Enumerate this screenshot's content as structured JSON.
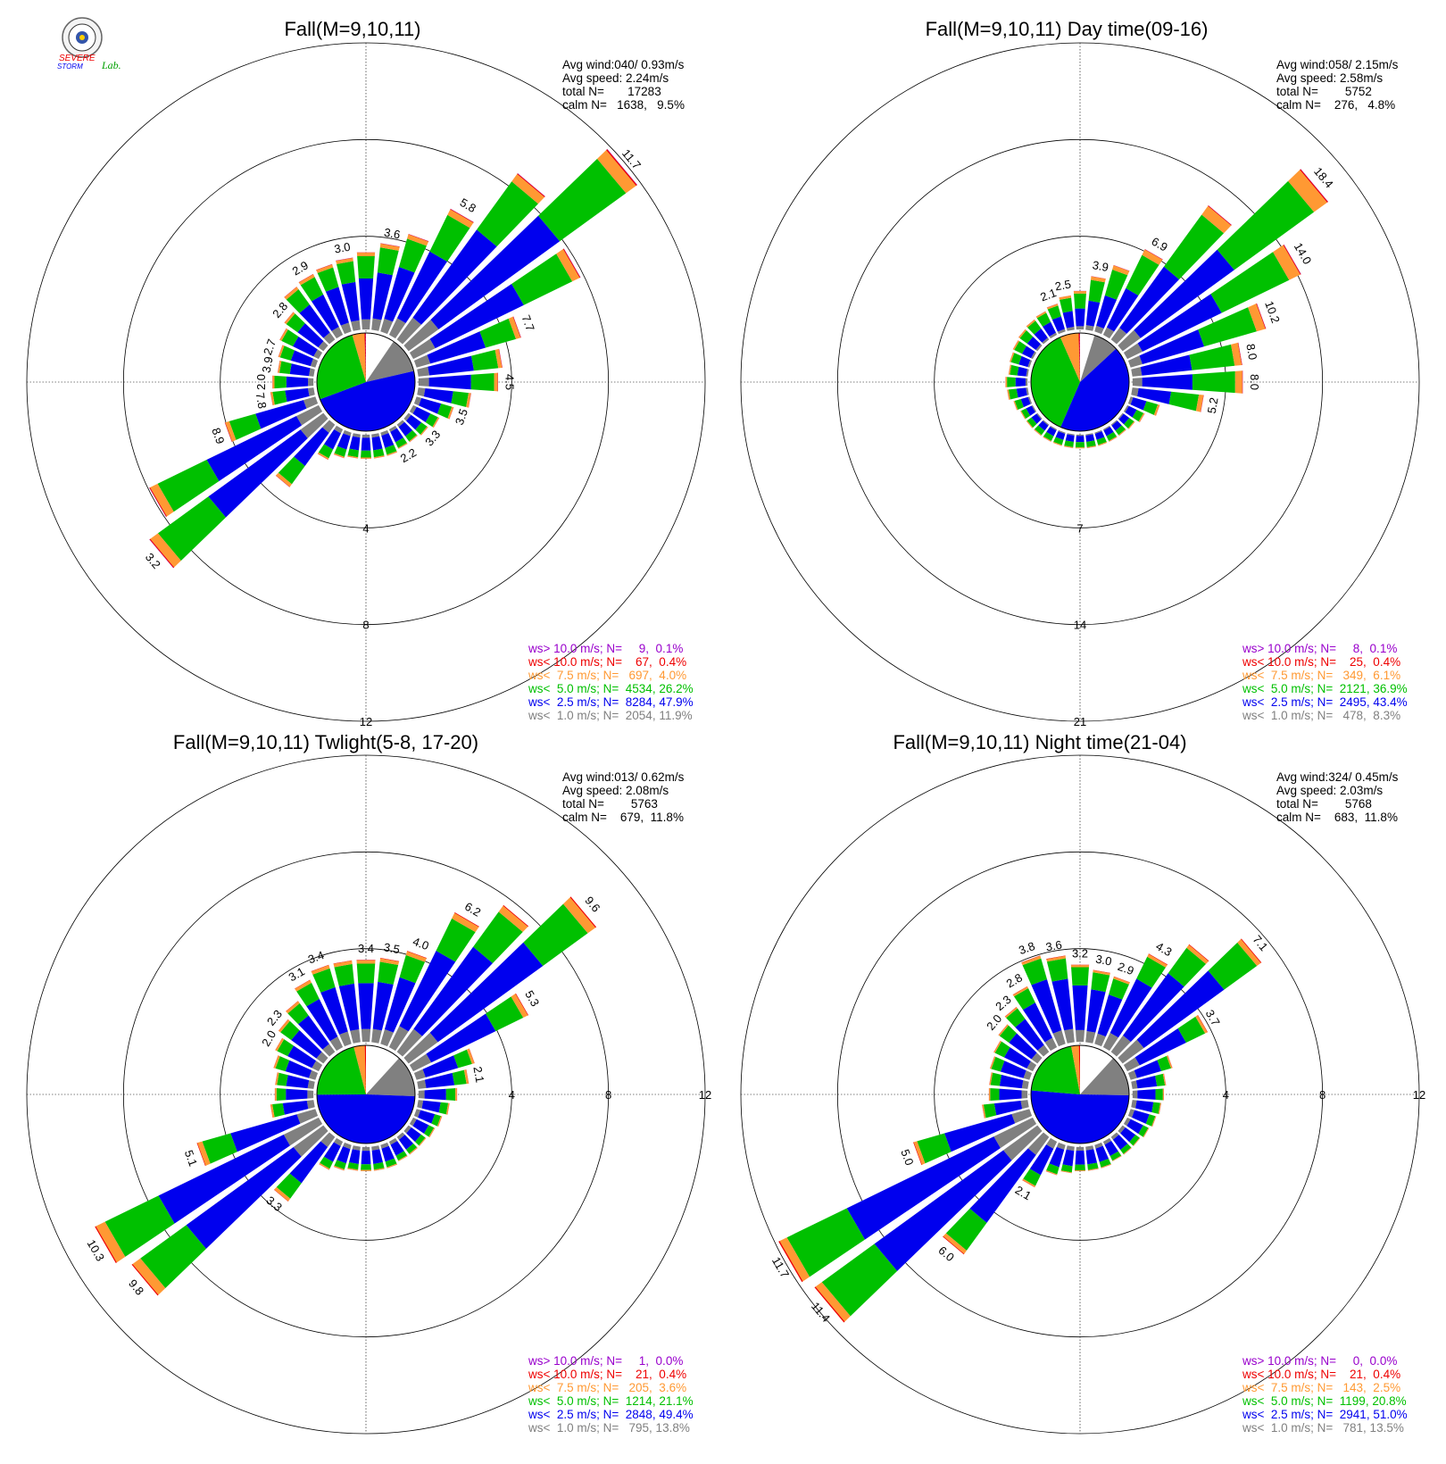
{
  "logo": {
    "text_top": "SEVERE",
    "text_mid": "STORM",
    "text_lab": "Lab."
  },
  "colors": {
    "calm": "#ffffff",
    "lt1": "#808080",
    "lt2_5": "#0000ee",
    "lt5": "#00c000",
    "lt7_5": "#ff9933",
    "lt10": "#ee0000",
    "gt10": "#9900cc"
  },
  "chart_data": [
    {
      "type": "windrose",
      "title": "Fall(M=9,10,11)",
      "stats": [
        "Avg wind:040/ 0.93m/s",
        "Avg speed: 2.24m/s",
        "total N=       17283",
        "calm N=   1638,   9.5%"
      ],
      "ring_labels": [
        "4",
        "8",
        "12"
      ],
      "ring_max": 12,
      "ring_axis": "south",
      "labels_shown": {
        "270": "2.0",
        "290": "2.7",
        "310": "2.8",
        "330": "2.9",
        "350": "3.0",
        "10": "3.6",
        "30": "5.8",
        "50": "11.7",
        "70": "7.7",
        "90": "4.5",
        "110": "3.5",
        "130": "3.3",
        "150": "2.2",
        "230": "3.2",
        "250": "8.9",
        "260": "7.8",
        "280": "3.9"
      },
      "sectors": [
        {
          "dir": 0,
          "total": 3.2
        },
        {
          "dir": 10,
          "total": 3.6
        },
        {
          "dir": 20,
          "total": 4.2
        },
        {
          "dir": 30,
          "total": 5.8
        },
        {
          "dir": 40,
          "total": 8.5
        },
        {
          "dir": 50,
          "total": 11.7
        },
        {
          "dir": 60,
          "total": 7.7
        },
        {
          "dir": 70,
          "total": 4.5
        },
        {
          "dir": 80,
          "total": 3.5
        },
        {
          "dir": 90,
          "total": 3.3
        },
        {
          "dir": 100,
          "total": 2.2
        },
        {
          "dir": 110,
          "total": 1.6
        },
        {
          "dir": 120,
          "total": 1.2
        },
        {
          "dir": 130,
          "total": 1.0
        },
        {
          "dir": 140,
          "total": 0.9
        },
        {
          "dir": 150,
          "total": 0.9
        },
        {
          "dir": 160,
          "total": 1.0
        },
        {
          "dir": 170,
          "total": 1.0
        },
        {
          "dir": 180,
          "total": 1.0
        },
        {
          "dir": 190,
          "total": 1.0
        },
        {
          "dir": 200,
          "total": 1.1
        },
        {
          "dir": 210,
          "total": 1.4
        },
        {
          "dir": 220,
          "total": 3.2
        },
        {
          "dir": 230,
          "total": 8.9
        },
        {
          "dir": 240,
          "total": 7.8
        },
        {
          "dir": 250,
          "total": 3.9
        },
        {
          "dir": 260,
          "total": 1.8
        },
        {
          "dir": 270,
          "total": 1.7
        },
        {
          "dir": 280,
          "total": 1.5
        },
        {
          "dir": 290,
          "total": 1.6
        },
        {
          "dir": 300,
          "total": 1.8
        },
        {
          "dir": 310,
          "total": 2.0
        },
        {
          "dir": 320,
          "total": 2.7
        },
        {
          "dir": 330,
          "total": 2.8
        },
        {
          "dir": 340,
          "total": 2.9
        },
        {
          "dir": 350,
          "total": 3.0
        }
      ],
      "speed_dist": [
        9.5,
        11.9,
        47.9,
        26.2,
        4.0,
        0.4,
        0.1
      ],
      "legend": [
        {
          "text": "ws> 10.0 m/s; N=     9,  0.1%",
          "key": "gt10"
        },
        {
          "text": "ws< 10.0 m/s; N=    67,  0.4%",
          "key": "lt10"
        },
        {
          "text": "ws<  7.5 m/s; N=   697,  4.0%",
          "key": "lt7_5"
        },
        {
          "text": "ws<  5.0 m/s; N=  4534, 26.2%",
          "key": "lt5"
        },
        {
          "text": "ws<  2.5 m/s; N=  8284, 47.9%",
          "key": "lt2_5"
        },
        {
          "text": "ws<  1.0 m/s; N=  2054, 11.9%",
          "key": "lt1"
        }
      ]
    },
    {
      "type": "windrose",
      "title": "Fall(M=9,10,11) Day time(09-16)",
      "stats": [
        "Avg wind:058/ 2.15m/s",
        "Avg speed: 2.58m/s",
        "total N=        5752",
        "calm N=    276,   4.8%"
      ],
      "ring_labels": [
        "7",
        "14",
        "21"
      ],
      "ring_max": 21,
      "ring_axis": "south",
      "labels_shown": {
        "340": "2.1",
        "350": "2.5",
        "10": "3.9",
        "30": "6.9",
        "50": "18.4",
        "60": "14.0",
        "70": "10.2",
        "80": "8.0",
        "90": "8.0",
        "100": "5.2"
      },
      "sectors": [
        {
          "dir": 0,
          "total": 2.8
        },
        {
          "dir": 10,
          "total": 3.9
        },
        {
          "dir": 20,
          "total": 5.0
        },
        {
          "dir": 30,
          "total": 6.9
        },
        {
          "dir": 40,
          "total": 12.0
        },
        {
          "dir": 50,
          "total": 18.4
        },
        {
          "dir": 60,
          "total": 14.0
        },
        {
          "dir": 70,
          "total": 10.2
        },
        {
          "dir": 80,
          "total": 8.0
        },
        {
          "dir": 90,
          "total": 8.0
        },
        {
          "dir": 100,
          "total": 5.2
        },
        {
          "dir": 110,
          "total": 2.2
        },
        {
          "dir": 120,
          "total": 1.4
        },
        {
          "dir": 130,
          "total": 1.1
        },
        {
          "dir": 140,
          "total": 1.0
        },
        {
          "dir": 150,
          "total": 1.0
        },
        {
          "dir": 160,
          "total": 1.0
        },
        {
          "dir": 170,
          "total": 1.0
        },
        {
          "dir": 180,
          "total": 1.0
        },
        {
          "dir": 190,
          "total": 1.0
        },
        {
          "dir": 200,
          "total": 1.0
        },
        {
          "dir": 210,
          "total": 1.0
        },
        {
          "dir": 220,
          "total": 1.0
        },
        {
          "dir": 230,
          "total": 1.0
        },
        {
          "dir": 240,
          "total": 1.0
        },
        {
          "dir": 250,
          "total": 1.2
        },
        {
          "dir": 260,
          "total": 1.5
        },
        {
          "dir": 270,
          "total": 1.6
        },
        {
          "dir": 280,
          "total": 1.4
        },
        {
          "dir": 290,
          "total": 1.5
        },
        {
          "dir": 300,
          "total": 1.6
        },
        {
          "dir": 310,
          "total": 1.7
        },
        {
          "dir": 320,
          "total": 1.8
        },
        {
          "dir": 330,
          "total": 1.9
        },
        {
          "dir": 340,
          "total": 2.1
        },
        {
          "dir": 350,
          "total": 2.5
        }
      ],
      "speed_dist": [
        4.8,
        8.3,
        43.4,
        36.9,
        6.1,
        0.4,
        0.1
      ],
      "legend": [
        {
          "text": "ws> 10.0 m/s; N=     8,  0.1%",
          "key": "gt10"
        },
        {
          "text": "ws< 10.0 m/s; N=    25,  0.4%",
          "key": "lt10"
        },
        {
          "text": "ws<  7.5 m/s; N=   349,  6.1%",
          "key": "lt7_5"
        },
        {
          "text": "ws<  5.0 m/s; N=  2121, 36.9%",
          "key": "lt5"
        },
        {
          "text": "ws<  2.5 m/s; N=  2495, 43.4%",
          "key": "lt2_5"
        },
        {
          "text": "ws<  1.0 m/s; N=   478,  8.3%",
          "key": "lt1"
        }
      ]
    },
    {
      "type": "windrose",
      "title": "Fall(M=9,10,11) Twlight(5-8, 17-20)",
      "stats": [
        "Avg wind:013/ 0.62m/s",
        "Avg speed: 2.08m/s",
        "total N=        5763",
        "calm N=    679,  11.8%"
      ],
      "ring_labels": [
        "4",
        "8",
        "12"
      ],
      "ring_max": 12,
      "ring_axis": "east",
      "labels_shown": {
        "300": "2.0",
        "310": "2.3",
        "330": "3.1",
        "340": "3.4",
        "0": "3.4",
        "10": "3.5",
        "20": "4.0",
        "30": "6.2",
        "50": "9.6",
        "60": "5.3",
        "80": "2.1",
        "250": "5.1",
        "240": "10.3",
        "230": "9.8",
        "220": "3.3"
      },
      "sectors": [
        {
          "dir": 0,
          "total": 3.4
        },
        {
          "dir": 10,
          "total": 3.5
        },
        {
          "dir": 20,
          "total": 4.0
        },
        {
          "dir": 30,
          "total": 6.2
        },
        {
          "dir": 40,
          "total": 7.5
        },
        {
          "dir": 50,
          "total": 9.6
        },
        {
          "dir": 60,
          "total": 5.3
        },
        {
          "dir": 70,
          "total": 2.5
        },
        {
          "dir": 80,
          "total": 2.1
        },
        {
          "dir": 90,
          "total": 1.6
        },
        {
          "dir": 100,
          "total": 1.3
        },
        {
          "dir": 110,
          "total": 1.1
        },
        {
          "dir": 120,
          "total": 1.0
        },
        {
          "dir": 130,
          "total": 0.9
        },
        {
          "dir": 140,
          "total": 0.9
        },
        {
          "dir": 150,
          "total": 0.9
        },
        {
          "dir": 160,
          "total": 1.0
        },
        {
          "dir": 170,
          "total": 1.0
        },
        {
          "dir": 180,
          "total": 1.0
        },
        {
          "dir": 190,
          "total": 1.0
        },
        {
          "dir": 200,
          "total": 1.1
        },
        {
          "dir": 210,
          "total": 1.3
        },
        {
          "dir": 220,
          "total": 3.3
        },
        {
          "dir": 230,
          "total": 9.8
        },
        {
          "dir": 240,
          "total": 10.3
        },
        {
          "dir": 250,
          "total": 5.1
        },
        {
          "dir": 260,
          "total": 1.8
        },
        {
          "dir": 270,
          "total": 1.6
        },
        {
          "dir": 280,
          "total": 1.6
        },
        {
          "dir": 290,
          "total": 1.8
        },
        {
          "dir": 300,
          "total": 2.0
        },
        {
          "dir": 310,
          "total": 2.3
        },
        {
          "dir": 320,
          "total": 2.6
        },
        {
          "dir": 330,
          "total": 3.1
        },
        {
          "dir": 340,
          "total": 3.4
        },
        {
          "dir": 350,
          "total": 3.4
        }
      ],
      "speed_dist": [
        11.8,
        13.8,
        49.4,
        21.1,
        3.6,
        0.4,
        0.0
      ],
      "legend": [
        {
          "text": "ws> 10.0 m/s; N=     1,  0.0%",
          "key": "gt10"
        },
        {
          "text": "ws< 10.0 m/s; N=    21,  0.4%",
          "key": "lt10"
        },
        {
          "text": "ws<  7.5 m/s; N=   205,  3.6%",
          "key": "lt7_5"
        },
        {
          "text": "ws<  5.0 m/s; N=  1214, 21.1%",
          "key": "lt5"
        },
        {
          "text": "ws<  2.5 m/s; N=  2848, 49.4%",
          "key": "lt2_5"
        },
        {
          "text": "ws<  1.0 m/s; N=   795, 13.8%",
          "key": "lt1"
        }
      ]
    },
    {
      "type": "windrose",
      "title": "Fall(M=9,10,11) Night time(21-04)",
      "stats": [
        "Avg wind:324/ 0.45m/s",
        "Avg speed: 2.03m/s",
        "total N=        5768",
        "calm N=    683,  11.8%"
      ],
      "ring_labels": [
        "4",
        "8",
        "12"
      ],
      "ring_max": 12,
      "ring_axis": "east",
      "labels_shown": {
        "310": "2.0",
        "320": "2.3",
        "330": "2.8",
        "340": "3.8",
        "350": "3.6",
        "0": "3.2",
        "10": "3.0",
        "20": "2.9",
        "30": "4.3",
        "50": "7.1",
        "60": "3.7",
        "250": "5.0",
        "240": "11.7",
        "230": "11.4",
        "220": "6.0",
        "210": "2.1"
      },
      "sectors": [
        {
          "dir": 0,
          "total": 3.2
        },
        {
          "dir": 10,
          "total": 3.0
        },
        {
          "dir": 20,
          "total": 2.9
        },
        {
          "dir": 30,
          "total": 4.3
        },
        {
          "dir": 40,
          "total": 5.5
        },
        {
          "dir": 50,
          "total": 7.1
        },
        {
          "dir": 60,
          "total": 3.7
        },
        {
          "dir": 70,
          "total": 1.8
        },
        {
          "dir": 80,
          "total": 1.4
        },
        {
          "dir": 90,
          "total": 1.3
        },
        {
          "dir": 100,
          "total": 1.2
        },
        {
          "dir": 110,
          "total": 1.1
        },
        {
          "dir": 120,
          "total": 1.0
        },
        {
          "dir": 130,
          "total": 0.9
        },
        {
          "dir": 140,
          "total": 0.9
        },
        {
          "dir": 150,
          "total": 0.9
        },
        {
          "dir": 160,
          "total": 1.0
        },
        {
          "dir": 170,
          "total": 1.0
        },
        {
          "dir": 180,
          "total": 1.0
        },
        {
          "dir": 190,
          "total": 1.1
        },
        {
          "dir": 200,
          "total": 1.3
        },
        {
          "dir": 210,
          "total": 2.1
        },
        {
          "dir": 220,
          "total": 6.0
        },
        {
          "dir": 230,
          "total": 11.4
        },
        {
          "dir": 240,
          "total": 11.7
        },
        {
          "dir": 250,
          "total": 5.0
        },
        {
          "dir": 260,
          "total": 1.9
        },
        {
          "dir": 270,
          "total": 1.6
        },
        {
          "dir": 280,
          "total": 1.6
        },
        {
          "dir": 290,
          "total": 1.7
        },
        {
          "dir": 300,
          "total": 1.8
        },
        {
          "dir": 310,
          "total": 2.0
        },
        {
          "dir": 320,
          "total": 2.3
        },
        {
          "dir": 330,
          "total": 2.8
        },
        {
          "dir": 340,
          "total": 3.8
        },
        {
          "dir": 350,
          "total": 3.6
        }
      ],
      "speed_dist": [
        11.8,
        13.5,
        51.0,
        20.8,
        2.5,
        0.4,
        0.0
      ],
      "legend": [
        {
          "text": "ws> 10.0 m/s; N=     0,  0.0%",
          "key": "gt10"
        },
        {
          "text": "ws< 10.0 m/s; N=    21,  0.4%",
          "key": "lt10"
        },
        {
          "text": "ws<  7.5 m/s; N=   143,  2.5%",
          "key": "lt7_5"
        },
        {
          "text": "ws<  5.0 m/s; N=  1199, 20.8%",
          "key": "lt5"
        },
        {
          "text": "ws<  2.5 m/s; N=  2941, 51.0%",
          "key": "lt2_5"
        },
        {
          "text": "ws<  1.0 m/s; N=   781, 13.5%",
          "key": "lt1"
        }
      ]
    }
  ]
}
